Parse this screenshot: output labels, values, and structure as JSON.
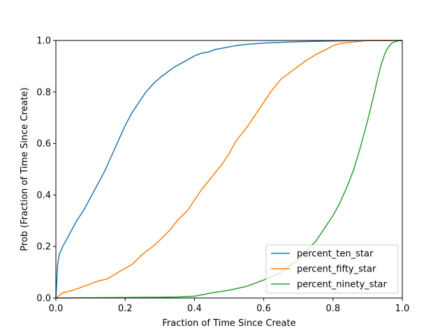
{
  "chart_data": {
    "type": "line",
    "title": "",
    "xlabel": "Fraction of Time Since Create",
    "ylabel": "Prob (Fraction of Time Since Create)",
    "xlim": [
      0.0,
      1.0
    ],
    "ylim": [
      0.0,
      1.0
    ],
    "xticks": [
      "0.0",
      "0.2",
      "0.4",
      "0.6",
      "0.8",
      "1.0"
    ],
    "yticks": [
      "0.0",
      "0.2",
      "0.4",
      "0.6",
      "0.8",
      "1.0"
    ],
    "grid": false,
    "legend": "lower-right",
    "series": [
      {
        "name": "percent_ten_star",
        "color": "#1f77b4",
        "x": [
          0.0,
          0.005,
          0.01,
          0.02,
          0.04,
          0.06,
          0.08,
          0.1,
          0.12,
          0.14,
          0.16,
          0.18,
          0.2,
          0.22,
          0.24,
          0.26,
          0.28,
          0.3,
          0.32,
          0.34,
          0.36,
          0.38,
          0.4,
          0.42,
          0.44,
          0.46,
          0.48,
          0.5,
          0.52,
          0.55,
          0.6,
          0.65,
          0.7,
          0.8,
          0.9,
          1.0
        ],
        "y": [
          0.0,
          0.13,
          0.17,
          0.2,
          0.25,
          0.3,
          0.34,
          0.39,
          0.44,
          0.49,
          0.55,
          0.61,
          0.67,
          0.72,
          0.76,
          0.8,
          0.83,
          0.855,
          0.875,
          0.895,
          0.91,
          0.925,
          0.94,
          0.95,
          0.955,
          0.965,
          0.97,
          0.975,
          0.98,
          0.985,
          0.99,
          0.993,
          0.995,
          0.998,
          1.0,
          1.0
        ]
      },
      {
        "name": "percent_fifty_star",
        "color": "#ff7f0e",
        "x": [
          0.0,
          0.01,
          0.02,
          0.05,
          0.08,
          0.1,
          0.12,
          0.15,
          0.18,
          0.2,
          0.22,
          0.25,
          0.28,
          0.3,
          0.33,
          0.35,
          0.38,
          0.4,
          0.42,
          0.45,
          0.48,
          0.5,
          0.52,
          0.55,
          0.58,
          0.6,
          0.62,
          0.65,
          0.68,
          0.7,
          0.72,
          0.75,
          0.78,
          0.8,
          0.82,
          0.85,
          0.88,
          0.9,
          1.0
        ],
        "y": [
          0.0,
          0.01,
          0.02,
          0.03,
          0.045,
          0.055,
          0.065,
          0.075,
          0.1,
          0.115,
          0.13,
          0.17,
          0.2,
          0.225,
          0.265,
          0.3,
          0.34,
          0.38,
          0.42,
          0.47,
          0.52,
          0.56,
          0.61,
          0.66,
          0.72,
          0.76,
          0.8,
          0.85,
          0.88,
          0.9,
          0.92,
          0.945,
          0.965,
          0.98,
          0.988,
          0.993,
          0.997,
          1.0,
          1.0
        ]
      },
      {
        "name": "percent_ninety_star",
        "color": "#2ca02c",
        "x": [
          0.0,
          0.1,
          0.2,
          0.3,
          0.35,
          0.4,
          0.42,
          0.45,
          0.5,
          0.55,
          0.6,
          0.65,
          0.7,
          0.72,
          0.75,
          0.78,
          0.8,
          0.82,
          0.84,
          0.86,
          0.88,
          0.9,
          0.92,
          0.93,
          0.94,
          0.95,
          0.96,
          0.97,
          0.98,
          0.99,
          1.0
        ],
        "y": [
          0.0,
          0.001,
          0.002,
          0.003,
          0.004,
          0.007,
          0.012,
          0.02,
          0.03,
          0.045,
          0.07,
          0.1,
          0.15,
          0.18,
          0.22,
          0.28,
          0.32,
          0.37,
          0.43,
          0.5,
          0.59,
          0.69,
          0.8,
          0.86,
          0.91,
          0.95,
          0.975,
          0.99,
          0.996,
          0.999,
          1.0
        ]
      }
    ]
  }
}
